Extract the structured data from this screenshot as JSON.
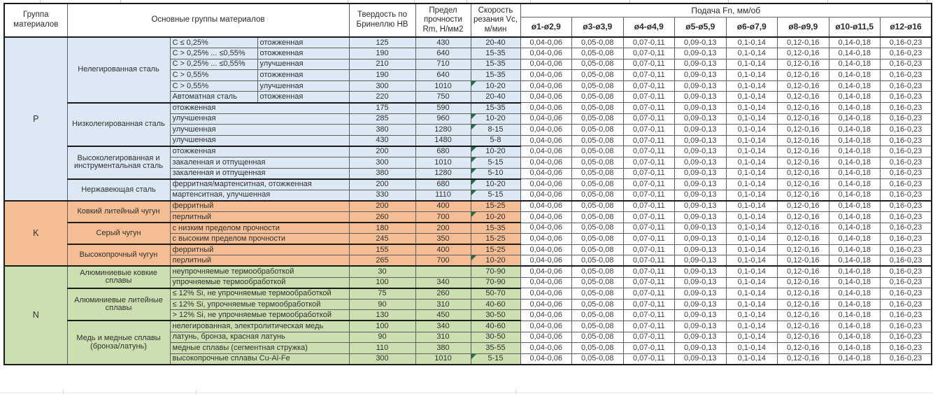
{
  "header": {
    "group_col": "Группа материалов",
    "main_col": "Основные группы материалов",
    "hb_col": "Твердость по Бринеллю HB",
    "rm_col": "Предел прочности Rm, Н/мм2",
    "vc_col": "Скорость резания Vc, м/мин",
    "feed_title": "Подача Fn, мм/об",
    "feed_cols": [
      "ø1-ø2,9",
      "ø3-ø3,9",
      "ø4-ø4,9",
      "ø5-ø5,9",
      "ø6-ø7,9",
      "ø8-ø9,9",
      "ø10-ø11,5",
      "ø12-ø16"
    ]
  },
  "feed_values": [
    "0,04-0,06",
    "0,05-0,08",
    "0,07-0,11",
    "0,09-0,13",
    "0,1-0,14",
    "0,12-0,16",
    "0,14-0,18",
    "0,16-0,23"
  ],
  "colors": {
    "group_p_bg": "#dce8f4",
    "group_k_bg": "#f5bd93",
    "group_n_bg": "#cbdfb1",
    "marker_green": "#1e7145",
    "grid_line": "#5f5f5f",
    "section_line": "#1c1c1c",
    "text": "#303030"
  },
  "groups": [
    {
      "letter": "P",
      "key": "p",
      "sections": [
        {
          "name": "Нелегированная сталь",
          "rows": [
            {
              "condition": "C ≤ 0,25%",
              "state": "отожженная",
              "hb": "125",
              "rm": "430",
              "vc": "20-40",
              "marker": false
            },
            {
              "condition": "C > 0,25% ... ≤0,55%",
              "state": "отожженная",
              "hb": "190",
              "rm": "640",
              "vc": "15-35",
              "marker": false
            },
            {
              "condition": "C > 0,25% ... ≤0,55%",
              "state": "улучшенная",
              "hb": "210",
              "rm": "710",
              "vc": "15-35",
              "marker": false
            },
            {
              "condition": "C > 0,55%",
              "state": "отожженная",
              "hb": "190",
              "rm": "640",
              "vc": "15-35",
              "marker": false
            },
            {
              "condition": "C > 0,55%",
              "state": "улучшенная",
              "hb": "300",
              "rm": "1010",
              "vc": "10-20",
              "marker": true
            },
            {
              "condition": "Автоматная сталь",
              "state": "отожженная",
              "hb": "220",
              "rm": "750",
              "vc": "20-40",
              "marker": false
            }
          ]
        },
        {
          "name": "Низколегированная сталь",
          "rows": [
            {
              "condition": "отожженная",
              "state": null,
              "hb": "175",
              "rm": "590",
              "vc": "15-35",
              "marker": false
            },
            {
              "condition": "улучшенная",
              "state": null,
              "hb": "285",
              "rm": "960",
              "vc": "10-20",
              "marker": true
            },
            {
              "condition": "улучшенная",
              "state": null,
              "hb": "380",
              "rm": "1280",
              "vc": "8-15",
              "marker": true
            },
            {
              "condition": "улучшенная",
              "state": null,
              "hb": "430",
              "rm": "1480",
              "vc": "5-8",
              "marker": false
            }
          ]
        },
        {
          "name": "Высоколегированная и инструментальная сталь",
          "rows": [
            {
              "condition": "отожженная",
              "state": null,
              "hb": "200",
              "rm": "680",
              "vc": "10-20",
              "marker": true
            },
            {
              "condition": "закаленная и отпущенная",
              "state": null,
              "hb": "300",
              "rm": "1010",
              "vc": "5-15",
              "marker": true
            },
            {
              "condition": "закаленная и отпущенная",
              "state": null,
              "hb": "380",
              "rm": "1280",
              "vc": "5-10",
              "marker": true
            }
          ]
        },
        {
          "name": "Нержавеющая сталь",
          "rows": [
            {
              "condition": "ферритная/мартенситная, отожженная",
              "state": null,
              "hb": "200",
              "rm": "680",
              "vc": "10-20",
              "marker": true
            },
            {
              "condition": "мартенситная, улучшенная",
              "state": null,
              "hb": "330",
              "rm": "1110",
              "vc": "5-15",
              "marker": true
            }
          ]
        }
      ]
    },
    {
      "letter": "K",
      "key": "k",
      "sections": [
        {
          "name": "Ковкий литейный чугун",
          "rows": [
            {
              "condition": "ферритный",
              "state": null,
              "hb": "200",
              "rm": "400",
              "vc": "15-25",
              "marker": false
            },
            {
              "condition": "перлитный",
              "state": null,
              "hb": "260",
              "rm": "700",
              "vc": "10-20",
              "marker": true
            }
          ]
        },
        {
          "name": "Серый чугун",
          "rows": [
            {
              "condition": "с низким пределом прочности",
              "state": null,
              "hb": "180",
              "rm": "200",
              "vc": "15-35",
              "marker": false
            },
            {
              "condition": "с высоким пределом прочности",
              "state": null,
              "hb": "245",
              "rm": "350",
              "vc": "15-25",
              "marker": false
            }
          ]
        },
        {
          "name": "Высокопрочный чугун",
          "rows": [
            {
              "condition": "ферритный",
              "state": null,
              "hb": "155",
              "rm": "400",
              "vc": "15-25",
              "marker": false
            },
            {
              "condition": "перлитный",
              "state": null,
              "hb": "265",
              "rm": "700",
              "vc": "10-20",
              "marker": true
            }
          ]
        }
      ]
    },
    {
      "letter": "N",
      "key": "n",
      "sections": [
        {
          "name": "Алюминиевые ковкие сплавы",
          "rows": [
            {
              "condition": "неупрочняемые термообработкой",
              "state": null,
              "hb": "30",
              "rm": "",
              "vc": "70-90",
              "marker": false
            },
            {
              "condition": "упрочняемые термообработкой",
              "state": null,
              "hb": "100",
              "rm": "340",
              "vc": "70-90",
              "marker": false
            }
          ]
        },
        {
          "name": "Алюминиевые литейные сплавы",
          "rows": [
            {
              "condition": "≤ 12% Si, не упрочняемые термообработкой",
              "state": null,
              "hb": "75",
              "rm": "260",
              "vc": "50-70",
              "marker": false
            },
            {
              "condition": "≤ 12% Si, упрочняемые термообработкой",
              "state": null,
              "hb": "90",
              "rm": "310",
              "vc": "40-60",
              "marker": false
            },
            {
              "condition": "> 12% Si, не упрочняемые термообработкой",
              "state": null,
              "hb": "130",
              "rm": "450",
              "vc": "30-50",
              "marker": false
            }
          ]
        },
        {
          "name": "Медь и медные сплавы (бронза/латунь)",
          "rows": [
            {
              "condition": "нелегированная, электролитическая медь",
              "state": null,
              "hb": "100",
              "rm": "340",
              "vc": "40-60",
              "marker": false
            },
            {
              "condition": "латунь, бронза, красная латунь",
              "state": null,
              "hb": "90",
              "rm": "310",
              "vc": "30-50",
              "marker": false
            },
            {
              "condition": "медные сплавы (сегментная стружка)",
              "state": null,
              "hb": "110",
              "rm": "380",
              "vc": "35-55",
              "marker": false
            },
            {
              "condition": "высокопрочные сплавы Cu-Al-Fe",
              "state": null,
              "hb": "300",
              "rm": "1010",
              "vc": "5-15",
              "marker": true
            }
          ]
        }
      ]
    }
  ]
}
